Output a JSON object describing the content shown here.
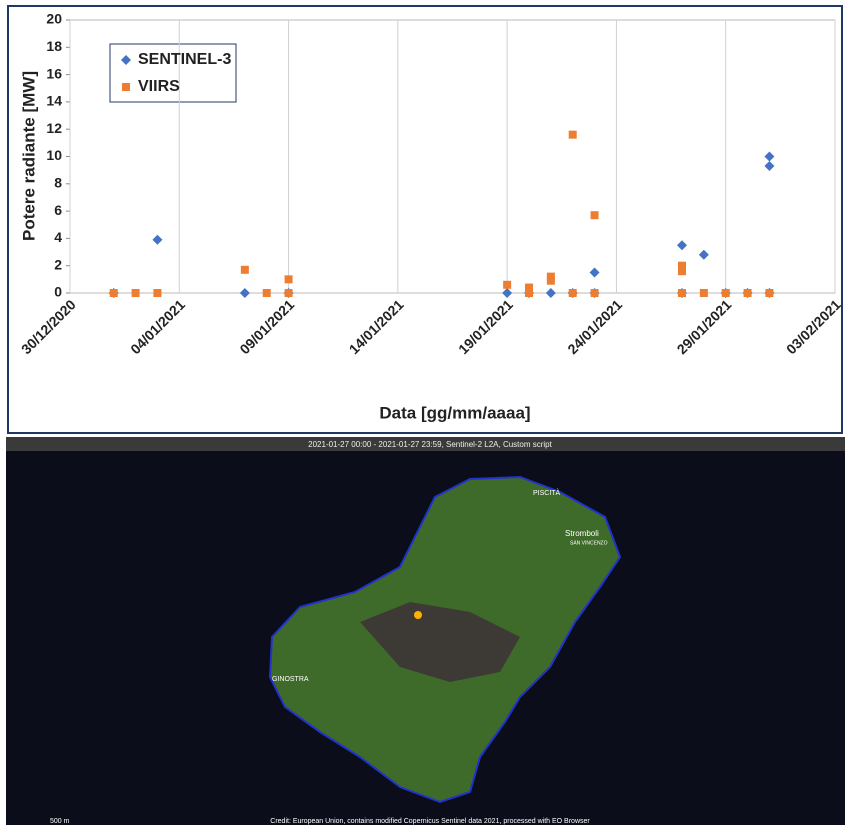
{
  "chart_data": {
    "type": "scatter",
    "x_label": "Data [gg/mm/aaaa]",
    "y_label": "Potere radiante [MW]",
    "xlim": [
      "2020-12-30",
      "2021-02-03"
    ],
    "xticks": [
      {
        "value": "2020-12-30",
        "label": "30/12/2020"
      },
      {
        "value": "2021-01-04",
        "label": "04/01/2021"
      },
      {
        "value": "2021-01-09",
        "label": "09/01/2021"
      },
      {
        "value": "2021-01-14",
        "label": "14/01/2021"
      },
      {
        "value": "2021-01-19",
        "label": "19/01/2021"
      },
      {
        "value": "2021-01-24",
        "label": "24/01/2021"
      },
      {
        "value": "2021-01-29",
        "label": "29/01/2021"
      },
      {
        "value": "2021-02-03",
        "label": "03/02/2021"
      }
    ],
    "ylim": [
      0,
      20
    ],
    "yticks": [
      0,
      2,
      4,
      6,
      8,
      10,
      12,
      14,
      16,
      18,
      20
    ],
    "grid": "x",
    "legend": "upper-left",
    "series": [
      {
        "name": "SENTINEL-3",
        "color": "#4472c4",
        "marker": "diamond",
        "x": [
          "2021-01-01",
          "2021-01-03",
          "2021-01-07",
          "2021-01-09",
          "2021-01-19",
          "2021-01-20",
          "2021-01-21",
          "2021-01-22",
          "2021-01-23",
          "2021-01-23",
          "2021-01-27",
          "2021-01-27",
          "2021-01-28",
          "2021-01-29",
          "2021-01-30",
          "2021-01-31",
          "2021-01-31",
          "2021-01-31"
        ],
        "values": [
          0,
          3.9,
          0,
          0,
          0,
          0,
          0,
          0,
          1.5,
          0,
          3.5,
          0,
          2.8,
          0,
          0,
          10.0,
          9.3,
          0
        ]
      },
      {
        "name": "VIIRS",
        "color": "#ed7d31",
        "marker": "square",
        "x": [
          "2021-01-01",
          "2021-01-02",
          "2021-01-03",
          "2021-01-07",
          "2021-01-08",
          "2021-01-09",
          "2021-01-09",
          "2021-01-19",
          "2021-01-20",
          "2021-01-20",
          "2021-01-21",
          "2021-01-21",
          "2021-01-22",
          "2021-01-22",
          "2021-01-23",
          "2021-01-23",
          "2021-01-27",
          "2021-01-27",
          "2021-01-27",
          "2021-01-28",
          "2021-01-29",
          "2021-01-30",
          "2021-01-31"
        ],
        "values": [
          0,
          0,
          0,
          1.7,
          0,
          0,
          1.0,
          0.6,
          0,
          0.4,
          1.2,
          0.9,
          0,
          11.6,
          0,
          5.7,
          0,
          2.0,
          1.6,
          0,
          0,
          0,
          0
        ]
      }
    ]
  },
  "image": {
    "title": "2021-01-27 00:00 - 2021-01-27 23:59, Sentinel-2 L2A, Custom script",
    "places": [
      "PISCITÀ",
      "Stromboli",
      "SAN VINCENZO",
      "GINOSTRA"
    ],
    "scale": "500 m",
    "credit": "Credit: European Union, contains modified Copernicus Sentinel data 2021, processed with EO Browser"
  }
}
